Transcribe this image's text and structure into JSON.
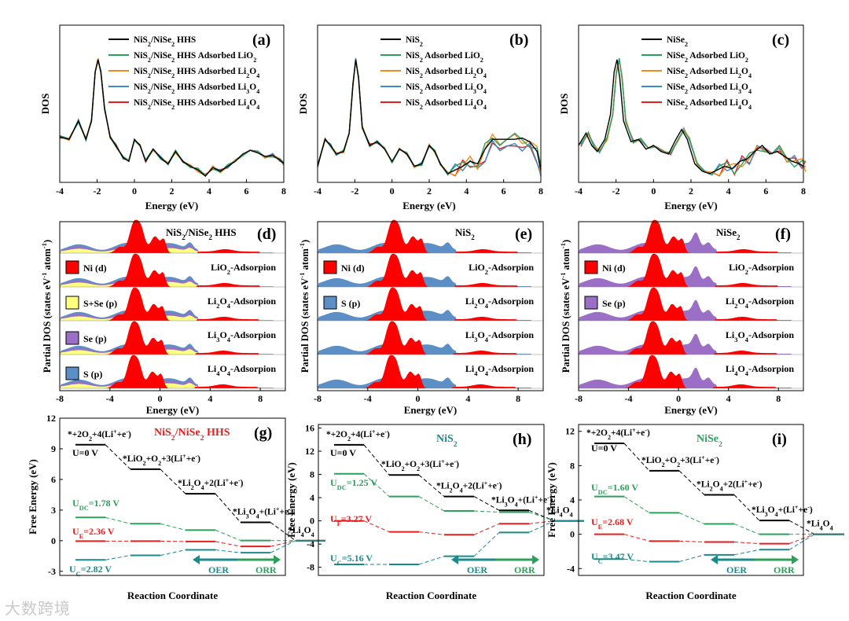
{
  "chart_data": [
    {
      "panel": "(a)",
      "type": "line",
      "xlabel": "Energy (eV)",
      "ylabel": "DOS",
      "xlim": [
        -4,
        8
      ],
      "xticks": [
        "-4",
        "-2",
        "0",
        "2",
        "4",
        "6",
        "8"
      ],
      "legend": [
        "NiS2/NiSe2 HHS",
        "NiS2/NiSe2 HHS Adsorbed LiO2",
        "NiS2/NiSe2 HHS Adsorbed Li2O4",
        "NiS2/NiSe2 HHS Adsorbed Li3O4",
        "NiS2/NiSe2 HHS Adsorbed Li4O4"
      ],
      "series_colors": [
        "#000000",
        "#2ca05a",
        "#f08c1e",
        "#3c8cc8",
        "#e61e1e"
      ],
      "x": [
        -4,
        -3.5,
        -3,
        -2.6,
        -2.3,
        -2.1,
        -1.95,
        -1.8,
        -1.6,
        -1.3,
        -1,
        -0.6,
        -0.3,
        0,
        0.3,
        0.6,
        1,
        1.4,
        1.8,
        2.2,
        2.6,
        3,
        3.4,
        3.8,
        4.2,
        4.6,
        5,
        5.4,
        5.8,
        6.2,
        6.6,
        7,
        7.4,
        7.8,
        8
      ],
      "series": [
        {
          "name": "NiS2/NiSe2 HHS",
          "values": [
            0.32,
            0.3,
            0.45,
            0.3,
            0.45,
            0.85,
            0.95,
            0.85,
            0.55,
            0.32,
            0.25,
            0.15,
            0.12,
            0.3,
            0.25,
            0.12,
            0.22,
            0.15,
            0.1,
            0.2,
            0.12,
            0.08,
            0.05,
            0.0,
            0.07,
            0.04,
            0.08,
            0.12,
            0.18,
            0.21,
            0.19,
            0.16,
            0.17,
            0.13,
            0.1
          ]
        }
      ]
    },
    {
      "panel": "(b)",
      "type": "line",
      "xlabel": "Energy (eV)",
      "ylabel": "DOS",
      "xlim": [
        -4,
        8
      ],
      "xticks": [
        "-4",
        "-2",
        "0",
        "2",
        "4",
        "6",
        "8"
      ],
      "legend": [
        "NiS2",
        "NiS2 Adsorbed LiO2",
        "NiS2 Adsorbed Li2O4",
        "NiS2 Adsorbed Li3O4",
        "NiS2 Adsorbed Li4O4"
      ],
      "series_colors": [
        "#000000",
        "#2ca05a",
        "#f08c1e",
        "#3c8cc8",
        "#e61e1e"
      ],
      "x": [
        -4,
        -3.6,
        -3.3,
        -3,
        -2.6,
        -2.3,
        -2.1,
        -1.95,
        -1.8,
        -1.6,
        -1.2,
        -0.8,
        -0.4,
        0,
        0.4,
        0.8,
        1.2,
        1.6,
        2,
        2.3,
        2.6,
        3,
        3.4,
        3.8,
        4.2,
        4.6,
        5,
        5.4,
        5.8,
        6.2,
        6.6,
        7,
        7.4,
        7.8,
        8
      ],
      "series": [
        {
          "name": "NiS2",
          "values": [
            0.08,
            0.3,
            0.25,
            0.18,
            0.2,
            0.35,
            0.75,
            0.95,
            0.8,
            0.4,
            0.25,
            0.28,
            0.22,
            0.12,
            0.22,
            0.18,
            0.08,
            0.1,
            0.25,
            0.2,
            0.1,
            0.02,
            0.05,
            0.08,
            0.12,
            0.1,
            0.22,
            0.3,
            0.3,
            0.3,
            0.3,
            0.31,
            0.28,
            0.2,
            0.05
          ]
        }
      ]
    },
    {
      "panel": "(c)",
      "type": "line",
      "xlabel": "Energy (eV)",
      "ylabel": "DOS",
      "xlim": [
        -4,
        8
      ],
      "xticks": [
        "-4",
        "-2",
        "0",
        "2",
        "4",
        "6",
        "8"
      ],
      "legend": [
        "NiSe2",
        "NiSe2 Adsorbed LiO2",
        "NiSe2 Adsorbed Li2O4",
        "NiSe2 Adsorbed Li3O4",
        "NiSe2 Adsorbed Li4O4"
      ],
      "series_colors": [
        "#000000",
        "#2ca05a",
        "#f08c1e",
        "#3c8cc8",
        "#e61e1e"
      ],
      "x": [
        -4,
        -3.6,
        -3.3,
        -3,
        -2.6,
        -2.3,
        -2.1,
        -1.95,
        -1.8,
        -1.6,
        -1.2,
        -0.8,
        -0.4,
        0,
        0.4,
        0.8,
        1.2,
        1.5,
        1.8,
        2.2,
        2.6,
        3,
        3.4,
        3.8,
        4.2,
        4.6,
        5,
        5.4,
        5.8,
        6.2,
        6.6,
        7,
        7.4,
        7.8,
        8
      ],
      "series": [
        {
          "name": "NiSe2",
          "values": [
            0.25,
            0.35,
            0.25,
            0.2,
            0.3,
            0.5,
            0.85,
            0.95,
            0.8,
            0.45,
            0.28,
            0.3,
            0.22,
            0.25,
            0.2,
            0.18,
            0.3,
            0.38,
            0.3,
            0.1,
            0.04,
            0.02,
            0.05,
            0.08,
            0.06,
            0.12,
            0.14,
            0.2,
            0.25,
            0.18,
            0.2,
            0.16,
            0.12,
            0.1,
            0.08
          ]
        }
      ]
    },
    {
      "panel": "(d)",
      "type": "area",
      "title": "NiS2/NiSe2 HHS",
      "ylabel": "Partial DOS (states eV-1 atom-1)",
      "xlabel": "Energy (eV)",
      "xlim": [
        -8,
        10
      ],
      "xticks": [
        "-8",
        "-4",
        "0",
        "4",
        "8"
      ],
      "tracks": [
        "",
        "LiO2-Adsorpion",
        "Li2O4-Adsorpion",
        "Li3O4-Adsorpion",
        "Li4O4-Adsorpion"
      ],
      "legend": [
        "Ni (d)",
        "S+Se (p)",
        "Se (p)",
        "S (p)"
      ],
      "legend_colors": [
        "#ff0000",
        "#ffff80",
        "#9b6fc6",
        "#5b8fc6"
      ]
    },
    {
      "panel": "(e)",
      "type": "area",
      "title": "NiS2",
      "ylabel": "Partial DOS (states eV-1 atom-1)",
      "xlabel": "Energy (eV)",
      "xlim": [
        -8,
        10
      ],
      "xticks": [
        "-8",
        "-4",
        "0",
        "4",
        "8"
      ],
      "tracks": [
        "",
        "LiO2-Adsorpion",
        "Li2O4-Adsorpion",
        "Li3O4-Adsorpion",
        "Li4O4-Adsorpion"
      ],
      "legend": [
        "Ni (d)",
        "S (p)"
      ],
      "legend_colors": [
        "#ff0000",
        "#5b8fc6"
      ]
    },
    {
      "panel": "(f)",
      "type": "area",
      "title": "NiSe2",
      "ylabel": "Partial DOS (states eV-1 atom-1)",
      "xlabel": "Energy (eV)",
      "xlim": [
        -8,
        10
      ],
      "xticks": [
        "-8",
        "-4",
        "0",
        "4",
        "8"
      ],
      "tracks": [
        "",
        "LiO2-Adsorpion",
        "Li2O4-Adsorpion",
        "Li3O4-Adsorpion",
        "Li4O4-Adsorpion"
      ],
      "legend": [
        "Ni (d)",
        "Se (p)"
      ],
      "legend_colors": [
        "#ff0000",
        "#9b6fc6"
      ]
    },
    {
      "panel": "(g)",
      "type": "line",
      "title": "NiS2/NiSe2 HHS",
      "xlabel": "Reaction Coordinate",
      "ylabel": "Free Energy (eV)",
      "ylim": [
        -3.4,
        12
      ],
      "yticks": [
        -3,
        0,
        3,
        6,
        9,
        12
      ],
      "steps": [
        "*+2O2+4(Li++e-)",
        "*LiO2+O2+3(Li++e-)",
        "*Li2O4+2(Li++e-)",
        "*Li3O4+(Li++e-)",
        "*Li4O4"
      ],
      "series": [
        {
          "name": "U=0 V",
          "values": [
            9.4,
            7.0,
            4.6,
            1.8,
            0.0
          ]
        },
        {
          "name": "UDC=1.78 V",
          "values": [
            2.28,
            1.66,
            1.04,
            0.02,
            0.0
          ]
        },
        {
          "name": "UE=2.36 V",
          "values": [
            -0.04,
            -0.04,
            -0.08,
            -0.56,
            0.0
          ]
        },
        {
          "name": "UC=2.82 V",
          "values": [
            -1.88,
            -1.44,
            -0.9,
            -1.18,
            0.0
          ]
        }
      ],
      "annotations": [
        "OER",
        "ORR"
      ]
    },
    {
      "panel": "(h)",
      "type": "line",
      "title": "NiS2",
      "xlabel": "Reaction Coordinate",
      "ylabel": "Free Energy (eV)",
      "ylim": [
        -9.4,
        16.6
      ],
      "yticks": [
        -8,
        -4,
        0,
        4,
        8,
        12,
        16
      ],
      "steps": [
        "*+2O2+4(Li++e-)",
        "*LiO2+O2+3(Li++e-)",
        "*Li2O4+2(Li++e-)",
        "*Li3O4+(Li++e-)",
        "*Li4O4"
      ],
      "series": [
        {
          "name": "U=0 V",
          "values": [
            13.1,
            7.9,
            4.2,
            1.8,
            0.0
          ]
        },
        {
          "name": "UDC=1.25 V",
          "values": [
            8.1,
            4.2,
            1.7,
            1.5,
            0.0
          ]
        },
        {
          "name": "UF=3.27 V",
          "values": [
            0.0,
            -1.9,
            -2.4,
            -0.5,
            0.0
          ]
        },
        {
          "name": "UC=5.16 V",
          "values": [
            -7.5,
            -7.5,
            -6.1,
            -2.0,
            0.0
          ]
        }
      ],
      "annotations": [
        "OER",
        "ORR"
      ]
    },
    {
      "panel": "(i)",
      "type": "line",
      "title": "NiSe2",
      "xlabel": "Reaction Coordinate",
      "ylabel": "Free Energy (eV)",
      "ylim": [
        -4.8,
        12.8
      ],
      "yticks": [
        -4,
        0,
        4,
        8,
        12
      ],
      "steps": [
        "*+2O2+4(Li++e-)",
        "*LiO2+O2+3(Li++e-)",
        "*Li2O4+2(Li++e-)",
        "*Li3O4+(Li++e-)",
        "*Li4O4"
      ],
      "series": [
        {
          "name": "U=0 V",
          "values": [
            10.6,
            7.4,
            4.6,
            1.6,
            0.0
          ]
        },
        {
          "name": "UDC=1.60 V",
          "values": [
            4.4,
            2.5,
            1.2,
            0.0,
            0.0
          ]
        },
        {
          "name": "UE=2.68 V",
          "values": [
            0.0,
            -0.8,
            -0.9,
            -1.1,
            0.0
          ]
        },
        {
          "name": "UC=3.47 V",
          "values": [
            -2.9,
            -3.2,
            -2.4,
            -1.8,
            0.0
          ]
        }
      ],
      "annotations": [
        "OER",
        "ORR"
      ]
    }
  ],
  "watermark": "大数跨境"
}
